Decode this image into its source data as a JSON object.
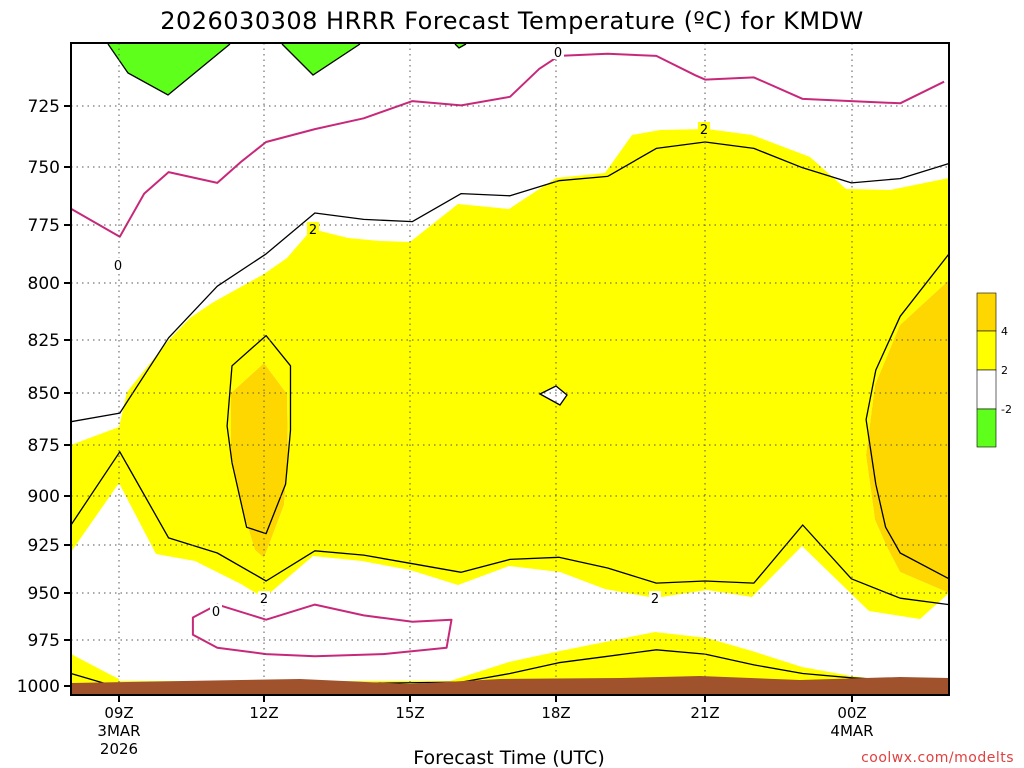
{
  "chart_data": {
    "type": "heatmap",
    "title": "2026030308 HRRR Forecast Temperature (ºC) for KMDW",
    "xlabel": "Forecast Time (UTC)",
    "ylabel": "",
    "credit": "coolwx.com/modelts",
    "y_axis": {
      "unit": "hPa",
      "ticks": [
        "725",
        "750",
        "775",
        "800",
        "825",
        "850",
        "875",
        "900",
        "925",
        "950",
        "975",
        "1000"
      ],
      "ylim": [
        700,
        1003
      ],
      "grid": true
    },
    "x_axis": {
      "ticks": [
        {
          "label": "09Z",
          "hour": 9,
          "date": "3MAR",
          "year": "2026"
        },
        {
          "label": "12Z",
          "hour": 12
        },
        {
          "label": "15Z",
          "hour": 15
        },
        {
          "label": "18Z",
          "hour": 18
        },
        {
          "label": "21Z",
          "hour": 21
        },
        {
          "label": "00Z",
          "hour": 24,
          "date": "4MAR"
        }
      ],
      "xlim": [
        8,
        26
      ],
      "grid": true
    },
    "colorbar": {
      "bins": [
        {
          "range": "> 4",
          "color": "#ffd700"
        },
        {
          "range": "2 to 4",
          "color": "#ffff00"
        },
        {
          "range": "-2 to 2",
          "color": "#ffffff"
        },
        {
          "range": "< -2",
          "color": "#5eff1a"
        }
      ],
      "labels": [
        "4",
        "2",
        "-2"
      ]
    },
    "contour_labels": [
      "0",
      "2",
      "2",
      "0",
      "2",
      "2",
      "0"
    ],
    "surface_color": "#a0522d",
    "series": [
      {
        "name": "0",
        "color": "#c8287a",
        "points": [
          [
            8,
            777
          ],
          [
            9,
            790
          ],
          [
            9.5,
            770
          ],
          [
            10,
            760
          ],
          [
            11,
            765
          ],
          [
            11.5,
            755
          ],
          [
            12,
            746
          ],
          [
            13,
            740
          ],
          [
            14,
            735
          ],
          [
            15,
            727
          ],
          [
            16,
            729
          ],
          [
            17,
            725
          ],
          [
            17.6,
            712
          ],
          [
            18,
            706
          ],
          [
            19,
            705
          ],
          [
            20,
            706
          ],
          [
            20.8,
            715
          ],
          [
            21,
            717
          ],
          [
            22,
            716
          ],
          [
            23,
            726
          ],
          [
            24,
            727
          ],
          [
            25,
            728
          ],
          [
            25.9,
            718
          ]
        ]
      },
      {
        "name": "0",
        "color": "#c8287a",
        "points": [
          [
            10.5,
            967
          ],
          [
            11,
            961
          ],
          [
            12,
            968
          ],
          [
            13,
            961
          ],
          [
            14,
            966
          ],
          [
            15,
            969
          ],
          [
            15.8,
            968
          ],
          [
            15.7,
            981
          ],
          [
            14.4,
            984
          ],
          [
            13,
            985
          ],
          [
            12,
            984
          ],
          [
            11,
            981
          ],
          [
            10.5,
            975
          ]
        ]
      },
      {
        "name": "2",
        "color": "#000000",
        "points": [
          [
            8,
            876
          ],
          [
            9,
            872
          ],
          [
            10,
            837
          ],
          [
            11,
            813
          ],
          [
            12,
            798
          ],
          [
            13,
            779
          ],
          [
            14,
            782
          ],
          [
            15,
            783
          ],
          [
            16,
            770
          ],
          [
            17,
            771
          ],
          [
            18,
            764
          ],
          [
            19,
            762
          ],
          [
            20,
            749
          ],
          [
            21,
            746
          ],
          [
            22,
            749
          ],
          [
            23,
            758
          ],
          [
            24,
            765
          ],
          [
            25,
            763
          ],
          [
            26,
            756
          ]
        ]
      },
      {
        "name": "2",
        "color": "#000000",
        "points": [
          [
            8,
            924
          ],
          [
            9,
            890
          ],
          [
            10,
            930
          ],
          [
            11,
            937
          ],
          [
            12,
            950
          ],
          [
            13,
            936
          ],
          [
            14,
            938
          ],
          [
            15,
            942
          ],
          [
            16,
            946
          ],
          [
            17,
            940
          ],
          [
            18,
            939
          ],
          [
            19,
            944
          ],
          [
            20,
            951
          ],
          [
            21,
            950
          ],
          [
            22,
            951
          ],
          [
            23,
            924
          ],
          [
            24,
            949
          ],
          [
            25,
            958
          ],
          [
            26,
            961
          ]
        ]
      },
      {
        "name": "2",
        "color": "#000000",
        "points": [
          [
            8,
            993
          ],
          [
            8.9,
            999
          ],
          [
            16,
            997
          ],
          [
            17,
            993
          ],
          [
            18,
            988
          ],
          [
            19,
            985
          ],
          [
            20,
            982
          ],
          [
            21,
            984
          ],
          [
            22,
            989
          ],
          [
            23,
            993
          ],
          [
            24,
            995
          ],
          [
            24.8,
            996
          ]
        ]
      },
      {
        "name": "4",
        "color": "#000000",
        "points": [
          [
            11.3,
            850
          ],
          [
            12,
            836
          ],
          [
            12.5,
            850
          ],
          [
            12.5,
            880
          ],
          [
            12.4,
            905
          ],
          [
            12,
            928
          ],
          [
            11.6,
            925
          ],
          [
            11.3,
            895
          ],
          [
            11.2,
            878
          ]
        ]
      },
      {
        "name": "4",
        "color": "#000000",
        "points": [
          [
            26,
            798
          ],
          [
            25,
            827
          ],
          [
            24.5,
            852
          ],
          [
            24.3,
            875
          ],
          [
            24.5,
            905
          ],
          [
            24.7,
            925
          ],
          [
            25,
            937
          ],
          [
            26,
            949
          ]
        ]
      }
    ]
  }
}
